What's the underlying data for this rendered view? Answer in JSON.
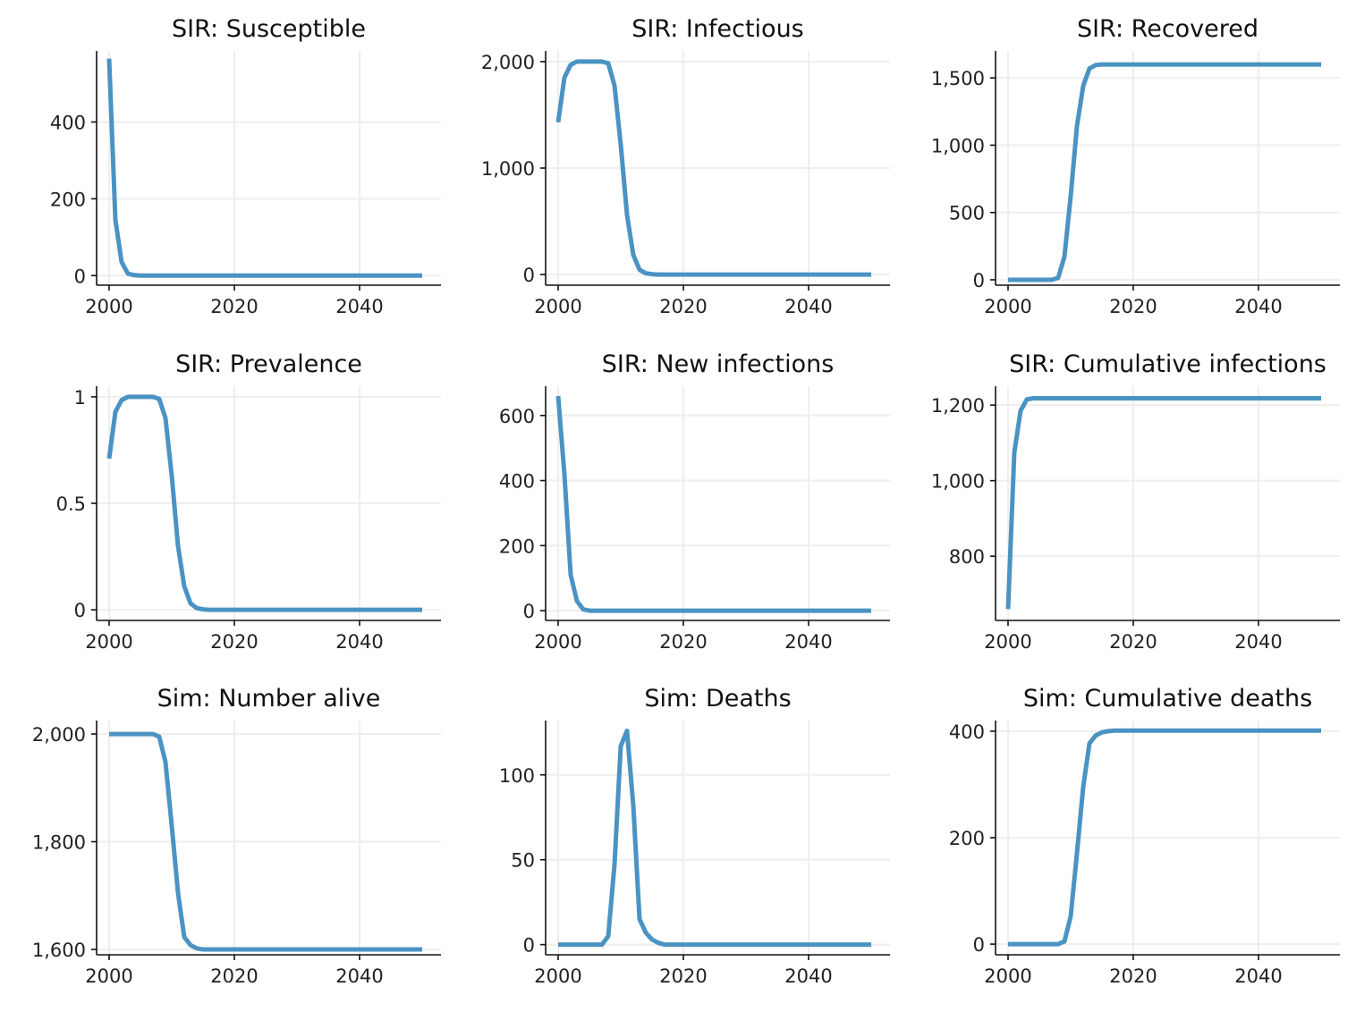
{
  "style": {
    "line_color": "#4a93c3"
  },
  "chart_data": [
    {
      "type": "line",
      "title": "SIR: Susceptible",
      "xlim": [
        1998,
        2053
      ],
      "ylim": [
        -25,
        585
      ],
      "xticks": [
        2000,
        2020,
        2040
      ],
      "xtick_labels": [
        "2000",
        "2020",
        "2040"
      ],
      "yticks": [
        0,
        200,
        400
      ],
      "ytick_labels": [
        "0",
        "200",
        "400"
      ],
      "grid": true,
      "x": [
        2000,
        2001,
        2002,
        2003,
        2004,
        2005,
        2010,
        2020,
        2030,
        2040,
        2050
      ],
      "y": [
        565,
        145,
        35,
        5,
        1,
        0,
        0,
        0,
        0,
        0,
        0
      ]
    },
    {
      "type": "line",
      "title": "SIR: Infectious",
      "xlim": [
        1998,
        2053
      ],
      "ylim": [
        -100,
        2100
      ],
      "xticks": [
        2000,
        2020,
        2040
      ],
      "xtick_labels": [
        "2000",
        "2020",
        "2040"
      ],
      "yticks": [
        0,
        1000,
        2000
      ],
      "ytick_labels": [
        "0",
        "1,000",
        "2,000"
      ],
      "grid": true,
      "x": [
        2000,
        2001,
        2002,
        2003,
        2004,
        2005,
        2006,
        2007,
        2008,
        2009,
        2010,
        2011,
        2012,
        2013,
        2014,
        2015,
        2016,
        2020,
        2030,
        2040,
        2050
      ],
      "y": [
        1430,
        1850,
        1970,
        2000,
        2000,
        2000,
        2000,
        2000,
        1985,
        1775,
        1220,
        560,
        185,
        45,
        12,
        3,
        0,
        0,
        0,
        0,
        0
      ]
    },
    {
      "type": "line",
      "title": "SIR: Recovered",
      "xlim": [
        1998,
        2053
      ],
      "ylim": [
        -40,
        1700
      ],
      "xticks": [
        2000,
        2020,
        2040
      ],
      "xtick_labels": [
        "2000",
        "2020",
        "2040"
      ],
      "yticks": [
        0,
        500,
        1000,
        1500
      ],
      "ytick_labels": [
        "0",
        "500",
        "1,000",
        "1,500"
      ],
      "grid": true,
      "x": [
        2000,
        2001,
        2002,
        2003,
        2004,
        2005,
        2006,
        2007,
        2008,
        2009,
        2010,
        2011,
        2012,
        2013,
        2014,
        2015,
        2016,
        2020,
        2030,
        2040,
        2050
      ],
      "y": [
        0,
        0,
        0,
        0,
        0,
        0,
        0,
        0,
        15,
        170,
        620,
        1140,
        1440,
        1570,
        1595,
        1600,
        1600,
        1600,
        1600,
        1600,
        1600
      ]
    },
    {
      "type": "line",
      "title": "SIR: Prevalence",
      "xlim": [
        1998,
        2053
      ],
      "ylim": [
        -0.05,
        1.05
      ],
      "xticks": [
        2000,
        2020,
        2040
      ],
      "xtick_labels": [
        "2000",
        "2020",
        "2040"
      ],
      "yticks": [
        0,
        0.5,
        1
      ],
      "ytick_labels": [
        "0",
        "0.5",
        "1"
      ],
      "grid": true,
      "x": [
        2000,
        2001,
        2002,
        2003,
        2004,
        2005,
        2006,
        2007,
        2008,
        2009,
        2010,
        2011,
        2012,
        2013,
        2014,
        2015,
        2016,
        2020,
        2030,
        2040,
        2050
      ],
      "y": [
        0.71,
        0.93,
        0.985,
        1,
        1,
        1,
        1,
        1,
        0.99,
        0.9,
        0.63,
        0.3,
        0.11,
        0.03,
        0.008,
        0.002,
        0,
        0,
        0,
        0,
        0
      ]
    },
    {
      "type": "line",
      "title": "SIR: New infections",
      "xlim": [
        1998,
        2053
      ],
      "ylim": [
        -30,
        690
      ],
      "xticks": [
        2000,
        2020,
        2040
      ],
      "xtick_labels": [
        "2000",
        "2020",
        "2040"
      ],
      "yticks": [
        0,
        200,
        400,
        600
      ],
      "ytick_labels": [
        "0",
        "200",
        "400",
        "600"
      ],
      "grid": true,
      "x": [
        2000,
        2001,
        2002,
        2003,
        2004,
        2005,
        2010,
        2020,
        2030,
        2040,
        2050
      ],
      "y": [
        660,
        420,
        110,
        30,
        4,
        0,
        0,
        0,
        0,
        0,
        0
      ]
    },
    {
      "type": "line",
      "title": "SIR: Cumulative infections",
      "xlim": [
        1998,
        2053
      ],
      "ylim": [
        630,
        1250
      ],
      "xticks": [
        2000,
        2020,
        2040
      ],
      "xtick_labels": [
        "2000",
        "2020",
        "2040"
      ],
      "yticks": [
        800,
        1000,
        1200
      ],
      "ytick_labels": [
        "800",
        "1,000",
        "1,200"
      ],
      "grid": true,
      "x": [
        2000,
        2001,
        2002,
        2003,
        2004,
        2005,
        2010,
        2020,
        2030,
        2040,
        2050
      ],
      "y": [
        660,
        1075,
        1185,
        1215,
        1218,
        1218,
        1218,
        1218,
        1218,
        1218,
        1218
      ]
    },
    {
      "type": "line",
      "title": "Sim: Number alive",
      "xlim": [
        1998,
        2053
      ],
      "ylim": [
        1590,
        2025
      ],
      "xticks": [
        2000,
        2020,
        2040
      ],
      "xtick_labels": [
        "2000",
        "2020",
        "2040"
      ],
      "yticks": [
        1600,
        1800,
        2000
      ],
      "ytick_labels": [
        "1,600",
        "1,800",
        "2,000"
      ],
      "grid": true,
      "x": [
        2000,
        2001,
        2002,
        2003,
        2004,
        2005,
        2006,
        2007,
        2008,
        2009,
        2010,
        2011,
        2012,
        2013,
        2014,
        2015,
        2016,
        2020,
        2030,
        2040,
        2050
      ],
      "y": [
        2000,
        2000,
        2000,
        2000,
        2000,
        2000,
        2000,
        2000,
        1995,
        1948,
        1830,
        1705,
        1623,
        1608,
        1602,
        1600,
        1600,
        1600,
        1600,
        1600,
        1600
      ]
    },
    {
      "type": "line",
      "title": "Sim: Deaths",
      "xlim": [
        1998,
        2053
      ],
      "ylim": [
        -6,
        132
      ],
      "xticks": [
        2000,
        2020,
        2040
      ],
      "xtick_labels": [
        "2000",
        "2020",
        "2040"
      ],
      "yticks": [
        0,
        50,
        100
      ],
      "ytick_labels": [
        "0",
        "50",
        "100"
      ],
      "grid": true,
      "x": [
        2000,
        2001,
        2002,
        2003,
        2004,
        2005,
        2006,
        2007,
        2008,
        2009,
        2010,
        2011,
        2012,
        2013,
        2014,
        2015,
        2016,
        2017,
        2020,
        2030,
        2040,
        2050
      ],
      "y": [
        0,
        0,
        0,
        0,
        0,
        0,
        0,
        0,
        5,
        47,
        117,
        126,
        82,
        15,
        7,
        3,
        1,
        0,
        0,
        0,
        0,
        0
      ]
    },
    {
      "type": "line",
      "title": "Sim: Cumulative deaths",
      "xlim": [
        1998,
        2053
      ],
      "ylim": [
        -20,
        420
      ],
      "xticks": [
        2000,
        2020,
        2040
      ],
      "xtick_labels": [
        "2000",
        "2020",
        "2040"
      ],
      "yticks": [
        0,
        200,
        400
      ],
      "ytick_labels": [
        "0",
        "200",
        "400"
      ],
      "grid": true,
      "x": [
        2000,
        2001,
        2002,
        2003,
        2004,
        2005,
        2006,
        2007,
        2008,
        2009,
        2010,
        2011,
        2012,
        2013,
        2014,
        2015,
        2016,
        2017,
        2020,
        2030,
        2040,
        2050
      ],
      "y": [
        0,
        0,
        0,
        0,
        0,
        0,
        0,
        0,
        0,
        5,
        52,
        170,
        295,
        377,
        392,
        398,
        400,
        401,
        401,
        401,
        401,
        401
      ]
    }
  ]
}
